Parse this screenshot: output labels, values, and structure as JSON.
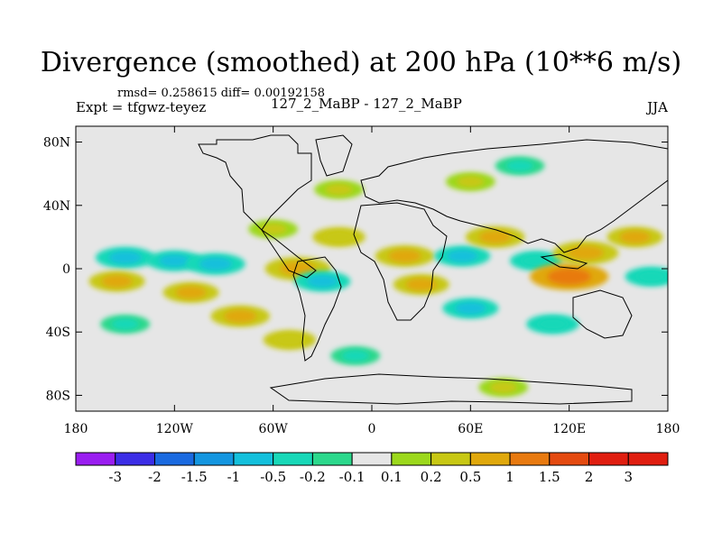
{
  "chart_data": {
    "type": "heatmap",
    "title": "Divergence (smoothed) at 200 hPa (10**6 m/s)",
    "stats_line": "rmsd= 0.258615 diff= 0.00192158",
    "left_label": "Expt = tfgwz-teyez",
    "center_label": "127_2_MaBP - 127_2_MaBP",
    "right_label": "JJA",
    "x_ticks": [
      "180",
      "120W",
      "60W",
      "0",
      "60E",
      "120E",
      "180"
    ],
    "x_tick_values": [
      -180,
      -120,
      -60,
      0,
      60,
      120,
      180
    ],
    "y_ticks": [
      "80N",
      "40N",
      "0",
      "40S",
      "80S"
    ],
    "y_tick_values": [
      80,
      40,
      0,
      -40,
      -80
    ],
    "xlim": [
      -180,
      180
    ],
    "ylim": [
      -90,
      90
    ],
    "colorbar": {
      "labels": [
        "-3",
        "-2",
        "-1.5",
        "-1",
        "-0.5",
        "-0.2",
        "-0.1",
        "0.1",
        "0.2",
        "0.5",
        "1",
        "1.5",
        "2",
        "3"
      ],
      "colors": [
        "#9a1ef0",
        "#3c2ee6",
        "#1a6ae0",
        "#1496e0",
        "#14c0dc",
        "#18d8b8",
        "#2cd88c",
        "#e6e6e6",
        "#9cd81c",
        "#c8c814",
        "#e0a80c",
        "#e87a10",
        "#e44a10",
        "#e01e10"
      ]
    },
    "fields": [
      {
        "lon": -150,
        "lat": 7,
        "value": -0.6
      },
      {
        "lon": -120,
        "lat": 5,
        "value": -0.5
      },
      {
        "lon": -95,
        "lat": 3,
        "value": -0.6
      },
      {
        "lon": -155,
        "lat": -8,
        "value": 0.5
      },
      {
        "lon": -110,
        "lat": -15,
        "value": 0.5
      },
      {
        "lon": -80,
        "lat": -30,
        "value": 0.6
      },
      {
        "lon": -50,
        "lat": -45,
        "value": 0.4
      },
      {
        "lon": -45,
        "lat": 0,
        "value": 0.8
      },
      {
        "lon": -30,
        "lat": -8,
        "value": -0.5
      },
      {
        "lon": -60,
        "lat": 25,
        "value": 0.3
      },
      {
        "lon": -20,
        "lat": 20,
        "value": 0.4
      },
      {
        "lon": 20,
        "lat": 8,
        "value": 0.6
      },
      {
        "lon": 30,
        "lat": -10,
        "value": 0.5
      },
      {
        "lon": 55,
        "lat": 8,
        "value": -0.5
      },
      {
        "lon": 60,
        "lat": -25,
        "value": -0.5
      },
      {
        "lon": 75,
        "lat": 20,
        "value": 0.6
      },
      {
        "lon": 100,
        "lat": 5,
        "value": -0.4
      },
      {
        "lon": 120,
        "lat": -5,
        "value": 1.2
      },
      {
        "lon": 130,
        "lat": 10,
        "value": 0.8
      },
      {
        "lon": 160,
        "lat": 20,
        "value": 0.5
      },
      {
        "lon": 170,
        "lat": -5,
        "value": -0.4
      },
      {
        "lon": 110,
        "lat": -35,
        "value": -0.4
      },
      {
        "lon": -150,
        "lat": -35,
        "value": -0.3
      },
      {
        "lon": 60,
        "lat": 55,
        "value": 0.3
      },
      {
        "lon": -20,
        "lat": 50,
        "value": 0.3
      },
      {
        "lon": 90,
        "lat": 65,
        "value": -0.3
      },
      {
        "lon": -10,
        "lat": -55,
        "value": -0.3
      },
      {
        "lon": 80,
        "lat": -75,
        "value": 0.3
      }
    ]
  }
}
